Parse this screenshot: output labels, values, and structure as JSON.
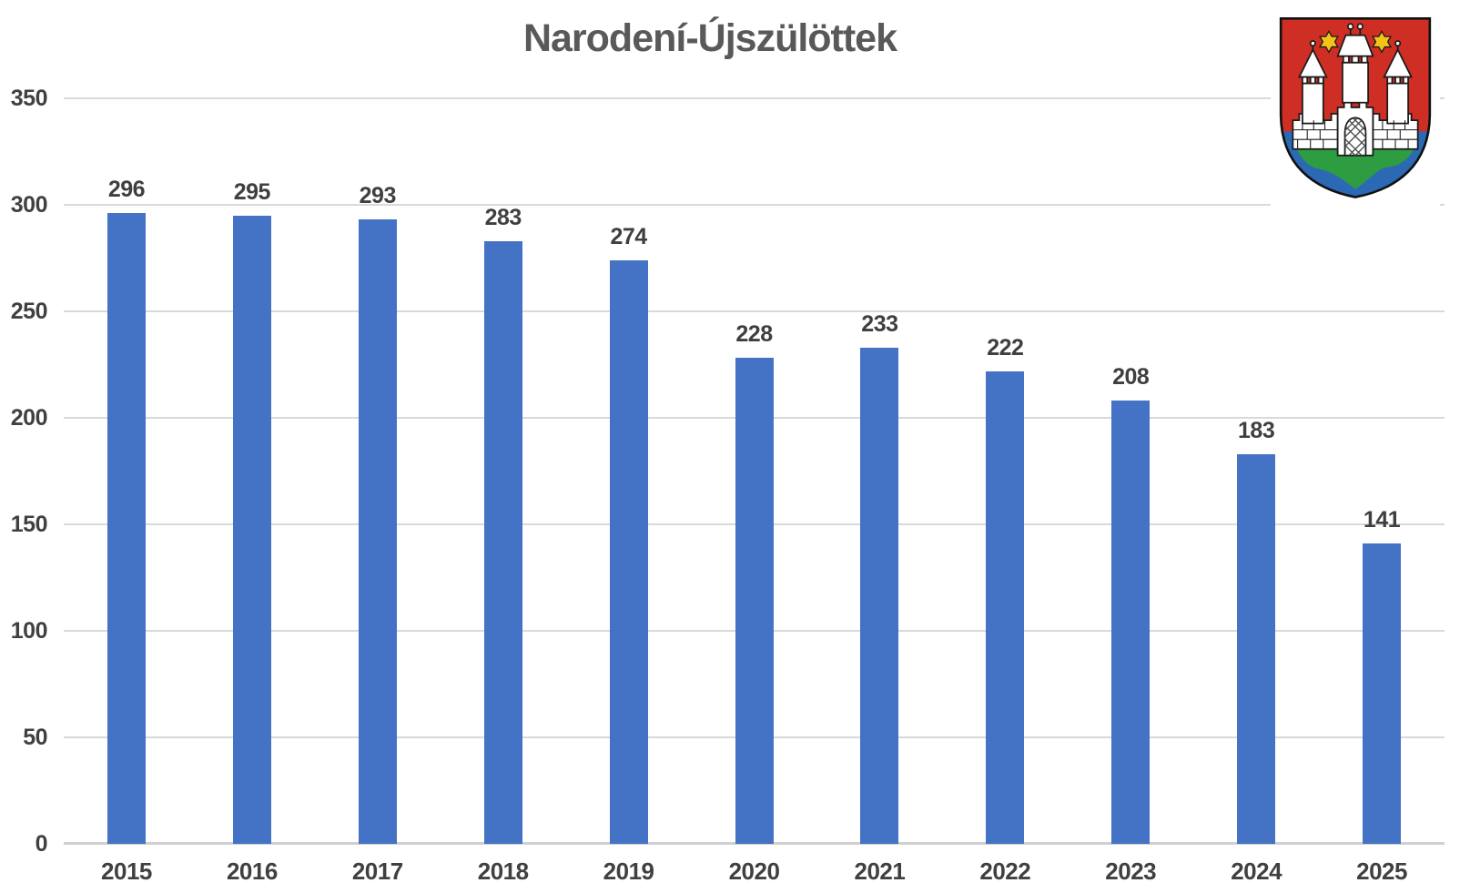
{
  "page": {
    "background": "#FFFFFF"
  },
  "chart_data": {
    "type": "bar",
    "title": "Narodení-Újszülöttek",
    "categories": [
      "2015",
      "2016",
      "2017",
      "2018",
      "2019",
      "2020",
      "2021",
      "2022",
      "2023",
      "2024",
      "2025"
    ],
    "values": [
      296,
      295,
      293,
      283,
      274,
      228,
      233,
      222,
      208,
      183,
      141
    ],
    "xlabel": "",
    "ylabel": "",
    "ylim": [
      0,
      350
    ],
    "yticks": [
      0,
      50,
      100,
      150,
      200,
      250,
      300,
      350
    ],
    "grid": true,
    "legend_position": "none",
    "data_labels": true,
    "colors": {
      "bar": "#4472C4",
      "gridline": "#D9D9D9",
      "axis_line": "#D0D0D0",
      "tick_label": "#404040",
      "value_label": "#3F3F3F",
      "title": "#595959"
    }
  },
  "coat_of_arms": {
    "name": "city-coat-of-arms",
    "description": "Shield: white three-towered castle with two gold six-pointed stars on red field, on green hill over blue base",
    "colors": {
      "field": "#CE2E23",
      "base": "#2B69B5",
      "hill": "#2E9C41",
      "castle": "#FFFFFF",
      "star": "#F2C318",
      "outline": "#1B1B1B"
    }
  }
}
